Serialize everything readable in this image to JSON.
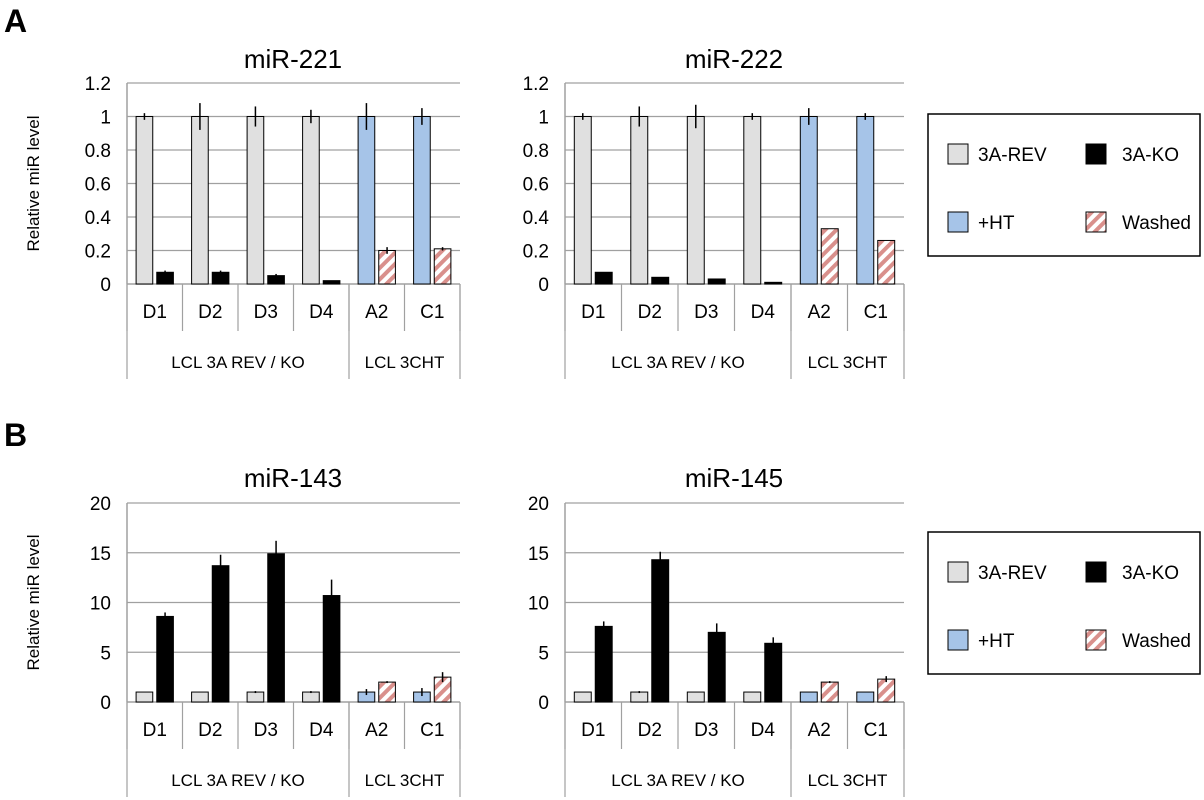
{
  "panels": [
    {
      "letter": "A"
    },
    {
      "letter": "B"
    }
  ],
  "colors": {
    "rev": "#e0e0e0",
    "ko": "#000000",
    "ht": "#a6c4e8",
    "washed_stripe": "#d9908c",
    "gridline": "#a0a0a0"
  },
  "legend": [
    {
      "key": "rev",
      "label": "3A-REV"
    },
    {
      "key": "ko",
      "label": "3A-KO"
    },
    {
      "key": "ht",
      "label": "+HT"
    },
    {
      "key": "washed",
      "label": "Washed"
    }
  ],
  "chart_data": [
    {
      "type": "bar",
      "title": "miR-221",
      "ylabel": "Relative miR level",
      "ylim": [
        0,
        1.2
      ],
      "yticks": [
        "0",
        "0.2",
        "0.4",
        "0.6",
        "0.8",
        "1",
        "1.2"
      ],
      "categories": [
        "D1",
        "D2",
        "D3",
        "D4",
        "A2",
        "C1"
      ],
      "groups": [
        {
          "label": "LCL 3A REV / KO",
          "span": 4
        },
        {
          "label": "LCL 3CHT",
          "span": 2
        }
      ],
      "series": [
        {
          "name": "3A-REV",
          "values": [
            1,
            1,
            1,
            1,
            null,
            null
          ],
          "errors": [
            0.02,
            0.08,
            0.06,
            0.04,
            null,
            null
          ]
        },
        {
          "name": "3A-KO",
          "values": [
            0.07,
            0.07,
            0.05,
            0.02,
            null,
            null
          ],
          "errors": [
            0.01,
            0.01,
            0.01,
            0.0,
            null,
            null
          ]
        },
        {
          "name": "+HT",
          "values": [
            null,
            null,
            null,
            null,
            1,
            1
          ],
          "errors": [
            null,
            null,
            null,
            null,
            0.08,
            0.05
          ]
        },
        {
          "name": "Washed",
          "values": [
            null,
            null,
            null,
            null,
            0.2,
            0.21
          ],
          "errors": [
            null,
            null,
            null,
            null,
            0.02,
            0.01
          ]
        }
      ]
    },
    {
      "type": "bar",
      "title": "miR-222",
      "ylabel": "",
      "ylim": [
        0,
        1.2
      ],
      "yticks": [
        "0",
        "0.2",
        "0.4",
        "0.6",
        "0.8",
        "1",
        "1.2"
      ],
      "categories": [
        "D1",
        "D2",
        "D3",
        "D4",
        "A2",
        "C1"
      ],
      "groups": [
        {
          "label": "LCL 3A REV / KO",
          "span": 4
        },
        {
          "label": "LCL 3CHT",
          "span": 2
        }
      ],
      "series": [
        {
          "name": "3A-REV",
          "values": [
            1,
            1,
            1,
            1,
            null,
            null
          ],
          "errors": [
            0.02,
            0.06,
            0.07,
            0.02,
            null,
            null
          ]
        },
        {
          "name": "3A-KO",
          "values": [
            0.07,
            0.04,
            0.03,
            0.01,
            null,
            null
          ],
          "errors": [
            0.0,
            0.0,
            0.0,
            0.0,
            null,
            null
          ]
        },
        {
          "name": "+HT",
          "values": [
            null,
            null,
            null,
            null,
            1,
            1
          ],
          "errors": [
            null,
            null,
            null,
            null,
            0.05,
            0.02
          ]
        },
        {
          "name": "Washed",
          "values": [
            null,
            null,
            null,
            null,
            0.33,
            0.26
          ],
          "errors": [
            null,
            null,
            null,
            null,
            0.0,
            0.0
          ]
        }
      ]
    },
    {
      "type": "bar",
      "title": "miR-143",
      "ylabel": "Relative miR level",
      "ylim": [
        0,
        20
      ],
      "yticks": [
        "0",
        "5",
        "10",
        "15",
        "20"
      ],
      "categories": [
        "D1",
        "D2",
        "D3",
        "D4",
        "A2",
        "C1"
      ],
      "groups": [
        {
          "label": "LCL 3A REV / KO",
          "span": 4
        },
        {
          "label": "LCL 3CHT",
          "span": 2
        }
      ],
      "series": [
        {
          "name": "3A-REV",
          "values": [
            1,
            1,
            1,
            1,
            null,
            null
          ],
          "errors": [
            0,
            0,
            0.1,
            0.1,
            null,
            null
          ]
        },
        {
          "name": "3A-KO",
          "values": [
            8.6,
            13.7,
            14.9,
            10.7,
            null,
            null
          ],
          "errors": [
            0.4,
            1.1,
            1.3,
            1.6,
            null,
            null
          ]
        },
        {
          "name": "+HT",
          "values": [
            null,
            null,
            null,
            null,
            1,
            1
          ],
          "errors": [
            null,
            null,
            null,
            null,
            0.3,
            0.4
          ]
        },
        {
          "name": "Washed",
          "values": [
            null,
            null,
            null,
            null,
            2.0,
            2.5
          ],
          "errors": [
            null,
            null,
            null,
            null,
            0.1,
            0.5
          ]
        }
      ]
    },
    {
      "type": "bar",
      "title": "miR-145",
      "ylabel": "",
      "ylim": [
        0,
        20
      ],
      "yticks": [
        "0",
        "5",
        "10",
        "15",
        "20"
      ],
      "categories": [
        "D1",
        "D2",
        "D3",
        "D4",
        "A2",
        "C1"
      ],
      "groups": [
        {
          "label": "LCL 3A REV / KO",
          "span": 4
        },
        {
          "label": "LCL 3CHT",
          "span": 2
        }
      ],
      "series": [
        {
          "name": "3A-REV",
          "values": [
            1,
            1,
            1,
            1,
            null,
            null
          ],
          "errors": [
            0,
            0.1,
            0,
            0,
            null,
            null
          ]
        },
        {
          "name": "3A-KO",
          "values": [
            7.6,
            14.3,
            7.0,
            5.9,
            null,
            null
          ],
          "errors": [
            0.5,
            0.8,
            0.9,
            0.6,
            null,
            null
          ]
        },
        {
          "name": "+HT",
          "values": [
            null,
            null,
            null,
            null,
            1,
            1
          ],
          "errors": [
            null,
            null,
            null,
            null,
            0,
            0
          ]
        },
        {
          "name": "Washed",
          "values": [
            null,
            null,
            null,
            null,
            2.0,
            2.3
          ],
          "errors": [
            null,
            null,
            null,
            null,
            0.1,
            0.3
          ]
        }
      ]
    }
  ]
}
